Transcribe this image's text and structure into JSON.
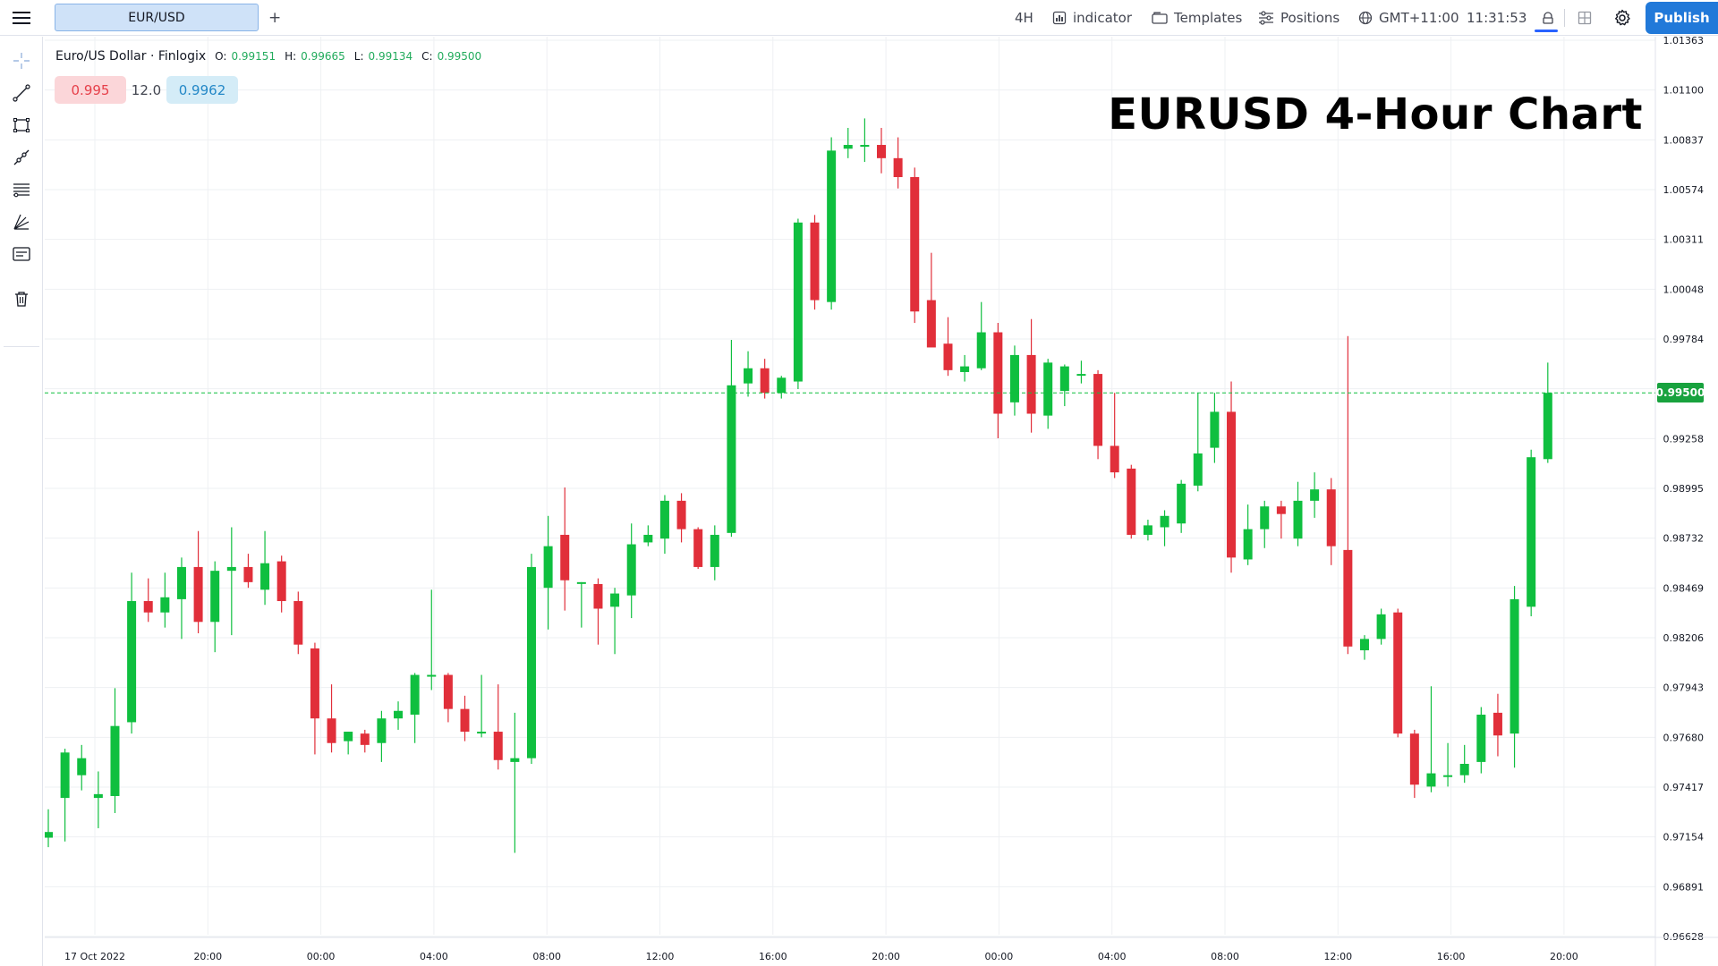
{
  "toolbar": {
    "symbol_tab": "EUR/USD",
    "add_tab": "+",
    "interval": "4H",
    "indicator": "indicator",
    "templates": "Templates",
    "positions": "Positions",
    "timezone": "GMT+11:00",
    "clock": "11:31:53",
    "publish": "Publish"
  },
  "legend": {
    "name": "Euro/US Dollar · Finlogix",
    "o_label": "O:",
    "o": "0.99151",
    "h_label": "H:",
    "h": "0.99665",
    "l_label": "L:",
    "l": "0.99134",
    "c_label": "C:",
    "c": "0.99500"
  },
  "quote": {
    "sell": "0.995",
    "spread": "12.0",
    "buy": "0.9962"
  },
  "headline": "EURUSD 4-Hour Chart",
  "last_price_label": "0.99500",
  "colors": {
    "up": "#0fbf3f",
    "down": "#e12f3a",
    "accent": "#2179d9",
    "grid": "#eef0f3"
  },
  "icons": {
    "menu": "hamburger-menu-icon",
    "indicator": "indicator-icon",
    "templates": "templates-icon",
    "positions": "positions-icon",
    "timezone": "globe-icon",
    "lock": "lock-icon",
    "layout": "layout-grid-icon",
    "settings": "gear-icon",
    "tools": [
      "crosshair-icon",
      "trend-line-icon",
      "rectangle-icon",
      "ray-icon",
      "fib-lines-icon",
      "pitchfork-icon",
      "text-note-icon",
      "trash-icon"
    ]
  },
  "chart_data": {
    "type": "candlestick",
    "grid": true,
    "y_ticks": [
      "1.01363",
      "1.01100",
      "1.00837",
      "1.00574",
      "1.00311",
      "1.00048",
      "0.99784",
      "0.99521",
      "0.99258",
      "0.98995",
      "0.98732",
      "0.98469",
      "0.98206",
      "0.97943",
      "0.97680",
      "0.97417",
      "0.97154",
      "0.96891",
      "0.96628"
    ],
    "ylim": [
      0.96628,
      1.01363
    ],
    "x_ticks": [
      "17 Oct 2022",
      "20:00",
      "00:00",
      "04:00",
      "08:00",
      "12:00",
      "16:00",
      "20:00",
      "00:00",
      "04:00",
      "08:00",
      "12:00",
      "16:00",
      "20:00"
    ],
    "last_price": 0.995,
    "candles": [
      {
        "o": 0.9715,
        "h": 0.973,
        "l": 0.971,
        "c": 0.9718
      },
      {
        "o": 0.9736,
        "h": 0.9762,
        "l": 0.9713,
        "c": 0.976
      },
      {
        "o": 0.9748,
        "h": 0.9764,
        "l": 0.974,
        "c": 0.9757
      },
      {
        "o": 0.9736,
        "h": 0.975,
        "l": 0.972,
        "c": 0.9738
      },
      {
        "o": 0.9737,
        "h": 0.9794,
        "l": 0.9728,
        "c": 0.9774
      },
      {
        "o": 0.9776,
        "h": 0.9855,
        "l": 0.977,
        "c": 0.984
      },
      {
        "o": 0.984,
        "h": 0.9852,
        "l": 0.9829,
        "c": 0.9834
      },
      {
        "o": 0.9834,
        "h": 0.9855,
        "l": 0.9826,
        "c": 0.9842
      },
      {
        "o": 0.9841,
        "h": 0.9863,
        "l": 0.982,
        "c": 0.9858
      },
      {
        "o": 0.9858,
        "h": 0.9877,
        "l": 0.9823,
        "c": 0.9829
      },
      {
        "o": 0.9829,
        "h": 0.9861,
        "l": 0.9813,
        "c": 0.9856
      },
      {
        "o": 0.9856,
        "h": 0.9879,
        "l": 0.9822,
        "c": 0.9858
      },
      {
        "o": 0.9858,
        "h": 0.9865,
        "l": 0.9847,
        "c": 0.985
      },
      {
        "o": 0.9846,
        "h": 0.9877,
        "l": 0.9838,
        "c": 0.986
      },
      {
        "o": 0.9861,
        "h": 0.9864,
        "l": 0.9834,
        "c": 0.984
      },
      {
        "o": 0.984,
        "h": 0.9845,
        "l": 0.9812,
        "c": 0.9817
      },
      {
        "o": 0.9815,
        "h": 0.9818,
        "l": 0.9759,
        "c": 0.9778
      },
      {
        "o": 0.9778,
        "h": 0.9796,
        "l": 0.976,
        "c": 0.9765
      },
      {
        "o": 0.9766,
        "h": 0.9771,
        "l": 0.9759,
        "c": 0.9771
      },
      {
        "o": 0.977,
        "h": 0.9772,
        "l": 0.976,
        "c": 0.9764
      },
      {
        "o": 0.9765,
        "h": 0.9782,
        "l": 0.9755,
        "c": 0.9778
      },
      {
        "o": 0.9778,
        "h": 0.9787,
        "l": 0.9772,
        "c": 0.9782
      },
      {
        "o": 0.978,
        "h": 0.9802,
        "l": 0.9765,
        "c": 0.9801
      },
      {
        "o": 0.9801,
        "h": 0.9846,
        "l": 0.9793,
        "c": 0.9801
      },
      {
        "o": 0.9801,
        "h": 0.9802,
        "l": 0.9776,
        "c": 0.9783
      },
      {
        "o": 0.9783,
        "h": 0.979,
        "l": 0.9766,
        "c": 0.9771
      },
      {
        "o": 0.9771,
        "h": 0.9801,
        "l": 0.9768,
        "c": 0.9771
      },
      {
        "o": 0.9771,
        "h": 0.9796,
        "l": 0.9751,
        "c": 0.9756
      },
      {
        "o": 0.9755,
        "h": 0.9781,
        "l": 0.9707,
        "c": 0.9757
      },
      {
        "o": 0.9757,
        "h": 0.9865,
        "l": 0.9754,
        "c": 0.9858
      },
      {
        "o": 0.9847,
        "h": 0.9885,
        "l": 0.9825,
        "c": 0.9869
      },
      {
        "o": 0.9875,
        "h": 0.99,
        "l": 0.9835,
        "c": 0.9851
      },
      {
        "o": 0.985,
        "h": 0.985,
        "l": 0.9826,
        "c": 0.985
      },
      {
        "o": 0.9849,
        "h": 0.9852,
        "l": 0.9817,
        "c": 0.9836
      },
      {
        "o": 0.9837,
        "h": 0.9847,
        "l": 0.9812,
        "c": 0.9844
      },
      {
        "o": 0.9843,
        "h": 0.9881,
        "l": 0.9831,
        "c": 0.987
      },
      {
        "o": 0.9871,
        "h": 0.988,
        "l": 0.9869,
        "c": 0.9875
      },
      {
        "o": 0.9873,
        "h": 0.9896,
        "l": 0.9865,
        "c": 0.9893
      },
      {
        "o": 0.9893,
        "h": 0.9897,
        "l": 0.9871,
        "c": 0.9878
      },
      {
        "o": 0.9878,
        "h": 0.9879,
        "l": 0.9857,
        "c": 0.9858
      },
      {
        "o": 0.9858,
        "h": 0.988,
        "l": 0.9851,
        "c": 0.9875
      },
      {
        "o": 0.9876,
        "h": 0.9978,
        "l": 0.9874,
        "c": 0.9954
      },
      {
        "o": 0.9955,
        "h": 0.9972,
        "l": 0.9948,
        "c": 0.9963
      },
      {
        "o": 0.9963,
        "h": 0.9968,
        "l": 0.9947,
        "c": 0.995
      },
      {
        "o": 0.995,
        "h": 0.9959,
        "l": 0.9947,
        "c": 0.9958
      },
      {
        "o": 0.9956,
        "h": 1.0042,
        "l": 0.9952,
        "c": 1.004
      },
      {
        "o": 1.004,
        "h": 1.0044,
        "l": 0.9994,
        "c": 0.9999
      },
      {
        "o": 0.9998,
        "h": 1.0085,
        "l": 0.9994,
        "c": 1.0078
      },
      {
        "o": 1.0079,
        "h": 1.009,
        "l": 1.0074,
        "c": 1.0081
      },
      {
        "o": 1.0081,
        "h": 1.0095,
        "l": 1.0072,
        "c": 1.0081
      },
      {
        "o": 1.0081,
        "h": 1.009,
        "l": 1.0066,
        "c": 1.0074
      },
      {
        "o": 1.0074,
        "h": 1.0085,
        "l": 1.0058,
        "c": 1.0064
      },
      {
        "o": 1.0064,
        "h": 1.0069,
        "l": 0.9987,
        "c": 0.9993
      },
      {
        "o": 0.9999,
        "h": 1.0024,
        "l": 0.9978,
        "c": 0.9974
      },
      {
        "o": 0.9976,
        "h": 0.999,
        "l": 0.9959,
        "c": 0.9962
      },
      {
        "o": 0.9961,
        "h": 0.997,
        "l": 0.9956,
        "c": 0.9964
      },
      {
        "o": 0.9963,
        "h": 0.9998,
        "l": 0.9962,
        "c": 0.9982
      },
      {
        "o": 0.9982,
        "h": 0.9987,
        "l": 0.9926,
        "c": 0.9939
      },
      {
        "o": 0.9945,
        "h": 0.9975,
        "l": 0.9938,
        "c": 0.997
      },
      {
        "o": 0.997,
        "h": 0.9989,
        "l": 0.9929,
        "c": 0.9939
      },
      {
        "o": 0.9938,
        "h": 0.9968,
        "l": 0.9931,
        "c": 0.9966
      },
      {
        "o": 0.9951,
        "h": 0.9965,
        "l": 0.9943,
        "c": 0.9964
      },
      {
        "o": 0.996,
        "h": 0.9967,
        "l": 0.9955,
        "c": 0.996
      },
      {
        "o": 0.996,
        "h": 0.9962,
        "l": 0.9915,
        "c": 0.9922
      },
      {
        "o": 0.9922,
        "h": 0.995,
        "l": 0.9905,
        "c": 0.9908
      },
      {
        "o": 0.991,
        "h": 0.9912,
        "l": 0.9873,
        "c": 0.9875
      },
      {
        "o": 0.9875,
        "h": 0.9883,
        "l": 0.9872,
        "c": 0.988
      },
      {
        "o": 0.9879,
        "h": 0.9888,
        "l": 0.9869,
        "c": 0.9885
      },
      {
        "o": 0.9881,
        "h": 0.9904,
        "l": 0.9876,
        "c": 0.9902
      },
      {
        "o": 0.9901,
        "h": 0.995,
        "l": 0.9898,
        "c": 0.9918
      },
      {
        "o": 0.9921,
        "h": 0.995,
        "l": 0.9913,
        "c": 0.994
      },
      {
        "o": 0.994,
        "h": 0.9956,
        "l": 0.9855,
        "c": 0.9863
      },
      {
        "o": 0.9862,
        "h": 0.9891,
        "l": 0.9859,
        "c": 0.9878
      },
      {
        "o": 0.9878,
        "h": 0.9893,
        "l": 0.9868,
        "c": 0.989
      },
      {
        "o": 0.989,
        "h": 0.9893,
        "l": 0.9873,
        "c": 0.9886
      },
      {
        "o": 0.9873,
        "h": 0.9903,
        "l": 0.9869,
        "c": 0.9893
      },
      {
        "o": 0.9893,
        "h": 0.9908,
        "l": 0.9884,
        "c": 0.9899
      },
      {
        "o": 0.9899,
        "h": 0.9905,
        "l": 0.9859,
        "c": 0.9869
      },
      {
        "o": 0.9867,
        "h": 0.998,
        "l": 0.9812,
        "c": 0.9816
      },
      {
        "o": 0.9814,
        "h": 0.9822,
        "l": 0.9809,
        "c": 0.982
      },
      {
        "o": 0.982,
        "h": 0.9836,
        "l": 0.9817,
        "c": 0.9833
      },
      {
        "o": 0.9834,
        "h": 0.9836,
        "l": 0.9768,
        "c": 0.977
      },
      {
        "o": 0.977,
        "h": 0.9772,
        "l": 0.9736,
        "c": 0.9743
      },
      {
        "o": 0.9742,
        "h": 0.9795,
        "l": 0.9739,
        "c": 0.9749
      },
      {
        "o": 0.9748,
        "h": 0.9765,
        "l": 0.9742,
        "c": 0.9748
      },
      {
        "o": 0.9748,
        "h": 0.9764,
        "l": 0.9744,
        "c": 0.9754
      },
      {
        "o": 0.9755,
        "h": 0.9784,
        "l": 0.9749,
        "c": 0.978
      },
      {
        "o": 0.9781,
        "h": 0.9791,
        "l": 0.9758,
        "c": 0.9769
      },
      {
        "o": 0.977,
        "h": 0.9848,
        "l": 0.9752,
        "c": 0.9841
      },
      {
        "o": 0.9837,
        "h": 0.992,
        "l": 0.9832,
        "c": 0.9916
      },
      {
        "o": 0.9915,
        "h": 0.9966,
        "l": 0.9913,
        "c": 0.995
      }
    ]
  }
}
